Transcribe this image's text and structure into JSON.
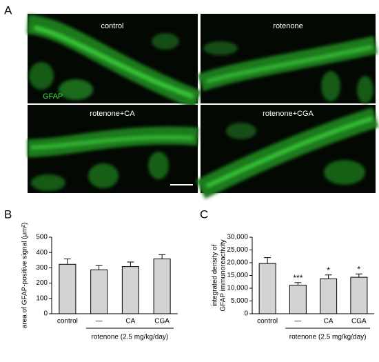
{
  "panels": {
    "a": "A",
    "b": "B",
    "c": "C"
  },
  "images": {
    "captions": [
      "control",
      "rotenone",
      "rotenone+CA",
      "rotenone+CGA"
    ],
    "marker": "GFAP"
  },
  "chart_data": [
    {
      "type": "bar",
      "y_label": [
        "area of GFAP-positive signal (μm²)"
      ],
      "categories": [
        "control",
        "—",
        "CA",
        "CGA"
      ],
      "group_label": "rotenone (2.5 mg/kg/day)",
      "values": [
        323,
        287,
        308,
        358
      ],
      "errors": [
        35,
        28,
        30,
        28
      ],
      "color": "#d3d3d3",
      "ylim": [
        0,
        500
      ],
      "yticks": [
        0,
        100,
        200,
        300,
        400,
        500
      ]
    },
    {
      "type": "bar",
      "y_label": [
        "integrated density of",
        "GFAP immunoreactivity"
      ],
      "categories": [
        "control",
        "—",
        "CA",
        "CGA"
      ],
      "group_label": "rotenone (2.5 mg/kg/day)",
      "values": [
        19700,
        11200,
        13700,
        14300
      ],
      "errors": [
        2300,
        1000,
        1500,
        1300
      ],
      "color": "#d3d3d3",
      "annotations": [
        null,
        "***",
        "*",
        "*"
      ],
      "ylim": [
        0,
        30000
      ],
      "yticks": [
        0,
        {
          "value": 5000,
          "label": "5,000"
        },
        {
          "value": 10000,
          "label": "10,000"
        },
        {
          "value": 15000,
          "label": "15,000"
        },
        {
          "value": 20000,
          "label": "20,000"
        },
        {
          "value": 25000,
          "label": "25,000"
        },
        {
          "value": 30000,
          "label": "30,000"
        }
      ]
    }
  ]
}
